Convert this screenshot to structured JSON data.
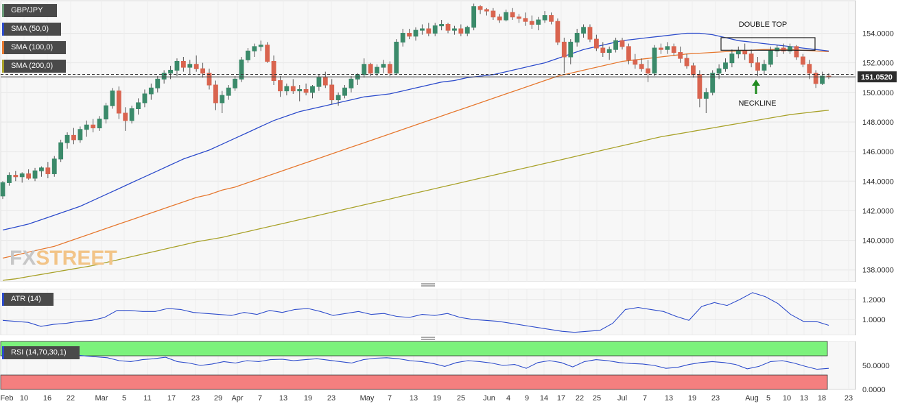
{
  "chart_data": [
    {
      "type": "candlestick",
      "title": "GBP/JPY",
      "x_ticks": [
        "Feb",
        "10",
        "16",
        "22",
        "Mar",
        "5",
        "11",
        "17",
        "23",
        "29",
        "Apr",
        "7",
        "13",
        "19",
        "23",
        "May",
        "7",
        "13",
        "19",
        "25",
        "Jun",
        "4",
        "9",
        "14",
        "17",
        "22",
        "25",
        "Jul",
        "7",
        "13",
        "19",
        "23",
        "Aug",
        "5",
        "10",
        "13",
        "18",
        "23"
      ],
      "y_ticks": [
        "138.0000",
        "140.0000",
        "142.0000",
        "144.0000",
        "146.0000",
        "148.0000",
        "150.0000",
        "152.0000",
        "154.0000"
      ],
      "ylim": [
        137.2,
        156.2
      ],
      "last_price": "151.0520",
      "last_price_value": 151.052,
      "dashed_level": 151.22,
      "candles": [
        [
          143.0,
          144.0,
          142.8,
          143.9
        ],
        [
          143.9,
          144.6,
          143.7,
          144.4
        ],
        [
          144.4,
          144.7,
          144.0,
          144.3
        ],
        [
          144.3,
          144.6,
          143.9,
          144.5
        ],
        [
          144.5,
          144.8,
          144.1,
          144.2
        ],
        [
          144.2,
          144.9,
          144.0,
          144.7
        ],
        [
          144.7,
          145.0,
          144.3,
          144.9
        ],
        [
          144.9,
          145.3,
          144.2,
          144.5
        ],
        [
          144.5,
          145.7,
          144.3,
          145.5
        ],
        [
          145.5,
          146.8,
          145.3,
          146.6
        ],
        [
          146.6,
          147.3,
          146.2,
          147.1
        ],
        [
          147.1,
          147.6,
          146.5,
          146.8
        ],
        [
          146.8,
          147.7,
          146.6,
          147.5
        ],
        [
          147.5,
          148.1,
          147.0,
          147.8
        ],
        [
          147.8,
          148.2,
          147.3,
          147.6
        ],
        [
          147.6,
          148.4,
          147.4,
          148.2
        ],
        [
          148.2,
          149.3,
          147.9,
          149.1
        ],
        [
          149.1,
          150.3,
          148.9,
          150.1
        ],
        [
          150.1,
          150.4,
          148.2,
          148.6
        ],
        [
          148.6,
          149.0,
          147.4,
          148.1
        ],
        [
          148.1,
          149.1,
          147.9,
          148.9
        ],
        [
          148.9,
          149.6,
          148.5,
          149.3
        ],
        [
          149.3,
          150.2,
          149.0,
          149.9
        ],
        [
          149.9,
          150.6,
          149.5,
          150.3
        ],
        [
          150.3,
          151.1,
          150.0,
          150.9
        ],
        [
          150.9,
          151.5,
          150.6,
          151.3
        ],
        [
          151.3,
          151.8,
          150.9,
          151.5
        ],
        [
          151.5,
          152.3,
          151.1,
          152.1
        ],
        [
          152.1,
          152.4,
          151.4,
          151.7
        ],
        [
          151.7,
          152.2,
          151.2,
          151.9
        ],
        [
          151.9,
          152.5,
          151.4,
          151.6
        ],
        [
          151.6,
          152.0,
          151.0,
          151.3
        ],
        [
          151.3,
          151.6,
          150.2,
          150.5
        ],
        [
          150.5,
          150.8,
          148.8,
          149.3
        ],
        [
          149.3,
          150.1,
          148.6,
          149.8
        ],
        [
          149.8,
          150.5,
          149.5,
          150.3
        ],
        [
          150.3,
          151.1,
          150.1,
          150.9
        ],
        [
          150.9,
          152.4,
          150.7,
          152.2
        ],
        [
          152.2,
          153.0,
          152.0,
          152.8
        ],
        [
          152.8,
          153.3,
          152.4,
          153.1
        ],
        [
          153.1,
          153.5,
          152.8,
          153.2
        ],
        [
          153.2,
          153.4,
          152.0,
          152.1
        ],
        [
          152.1,
          152.5,
          150.5,
          150.8
        ],
        [
          150.8,
          151.1,
          149.7,
          150.1
        ],
        [
          150.1,
          150.6,
          149.8,
          150.4
        ],
        [
          150.4,
          150.9,
          149.9,
          150.1
        ],
        [
          150.1,
          150.5,
          149.4,
          150.2
        ],
        [
          150.2,
          150.6,
          149.8,
          150.0
        ],
        [
          150.0,
          150.5,
          149.6,
          150.4
        ],
        [
          150.4,
          151.2,
          150.1,
          151.0
        ],
        [
          151.0,
          151.4,
          150.3,
          150.5
        ],
        [
          150.5,
          150.9,
          149.2,
          149.5
        ],
        [
          149.5,
          150.0,
          149.1,
          149.8
        ],
        [
          149.8,
          150.5,
          149.6,
          150.3
        ],
        [
          150.3,
          151.1,
          150.0,
          150.9
        ],
        [
          150.9,
          151.3,
          150.5,
          151.2
        ],
        [
          151.2,
          152.3,
          151.0,
          151.9
        ],
        [
          151.9,
          152.0,
          151.1,
          151.3
        ],
        [
          151.3,
          151.9,
          151.1,
          151.7
        ],
        [
          151.7,
          152.2,
          151.3,
          151.9
        ],
        [
          151.9,
          152.1,
          151.1,
          151.3
        ],
        [
          151.3,
          153.6,
          151.2,
          153.4
        ],
        [
          153.4,
          154.3,
          153.1,
          154.0
        ],
        [
          154.0,
          154.3,
          153.6,
          153.8
        ],
        [
          153.8,
          154.4,
          153.5,
          154.2
        ],
        [
          154.2,
          154.6,
          153.9,
          154.3
        ],
        [
          154.3,
          154.7,
          153.8,
          154.0
        ],
        [
          154.0,
          154.7,
          153.8,
          154.5
        ],
        [
          154.5,
          154.9,
          154.2,
          154.6
        ],
        [
          154.6,
          154.7,
          154.0,
          154.2
        ],
        [
          154.2,
          154.5,
          153.9,
          154.3
        ],
        [
          154.3,
          154.6,
          153.8,
          154.0
        ],
        [
          154.0,
          154.5,
          153.8,
          154.4
        ],
        [
          154.4,
          156.0,
          154.2,
          155.8
        ],
        [
          155.8,
          155.9,
          155.3,
          155.6
        ],
        [
          155.6,
          155.7,
          155.2,
          155.5
        ],
        [
          155.5,
          155.7,
          154.9,
          155.1
        ],
        [
          155.1,
          155.3,
          154.7,
          154.9
        ],
        [
          154.9,
          155.6,
          154.8,
          155.4
        ],
        [
          155.4,
          155.7,
          154.9,
          155.1
        ],
        [
          155.1,
          155.3,
          154.7,
          155.0
        ],
        [
          155.0,
          155.4,
          154.5,
          154.8
        ],
        [
          154.8,
          155.2,
          154.3,
          154.6
        ],
        [
          154.6,
          155.1,
          154.2,
          154.9
        ],
        [
          154.9,
          155.5,
          154.7,
          155.2
        ],
        [
          155.2,
          155.4,
          154.6,
          154.8
        ],
        [
          154.8,
          155.0,
          153.2,
          153.4
        ],
        [
          153.4,
          153.7,
          151.3,
          152.4
        ],
        [
          152.4,
          153.6,
          151.9,
          153.4
        ],
        [
          153.4,
          154.3,
          153.1,
          154.0
        ],
        [
          154.0,
          154.6,
          153.7,
          154.4
        ],
        [
          154.4,
          154.6,
          153.4,
          153.6
        ],
        [
          153.6,
          153.9,
          152.8,
          153.0
        ],
        [
          153.0,
          153.4,
          152.4,
          152.7
        ],
        [
          152.7,
          153.1,
          152.2,
          152.9
        ],
        [
          152.9,
          153.7,
          152.7,
          153.5
        ],
        [
          153.5,
          153.7,
          152.9,
          153.1
        ],
        [
          153.1,
          153.3,
          151.9,
          152.2
        ],
        [
          152.2,
          152.6,
          151.6,
          151.9
        ],
        [
          151.9,
          152.3,
          151.4,
          151.6
        ],
        [
          151.6,
          152.2,
          150.7,
          151.3
        ],
        [
          151.3,
          153.2,
          151.1,
          153.0
        ],
        [
          153.0,
          153.3,
          152.6,
          152.9
        ],
        [
          152.9,
          153.4,
          152.6,
          153.1
        ],
        [
          153.1,
          153.3,
          152.5,
          152.7
        ],
        [
          152.7,
          153.1,
          152.0,
          152.3
        ],
        [
          152.3,
          152.6,
          151.6,
          151.8
        ],
        [
          151.8,
          152.0,
          151.0,
          151.2
        ],
        [
          151.2,
          151.5,
          149.0,
          149.6
        ],
        [
          149.6,
          150.3,
          148.6,
          150.0
        ],
        [
          150.0,
          151.5,
          149.8,
          151.3
        ],
        [
          151.3,
          151.9,
          150.9,
          151.6
        ],
        [
          151.6,
          152.3,
          151.4,
          152.0
        ],
        [
          152.0,
          152.9,
          151.7,
          152.6
        ],
        [
          152.6,
          153.1,
          152.3,
          152.8
        ],
        [
          152.8,
          153.3,
          152.2,
          152.6
        ],
        [
          152.6,
          152.9,
          151.7,
          152.0
        ],
        [
          152.0,
          152.4,
          151.1,
          151.5
        ],
        [
          151.5,
          152.2,
          151.2,
          151.9
        ],
        [
          151.9,
          153.1,
          151.7,
          152.8
        ],
        [
          152.8,
          153.2,
          152.4,
          153.0
        ],
        [
          153.0,
          153.3,
          152.6,
          152.8
        ],
        [
          152.8,
          153.3,
          152.6,
          153.1
        ],
        [
          153.1,
          153.2,
          152.2,
          152.4
        ],
        [
          152.4,
          152.6,
          151.7,
          151.9
        ],
        [
          151.9,
          152.2,
          150.9,
          151.3
        ],
        [
          151.3,
          151.5,
          150.3,
          150.6
        ],
        [
          150.6,
          151.4,
          150.5,
          151.1
        ],
        [
          151.1,
          151.3,
          150.9,
          151.05
        ]
      ],
      "sma50": [
        140.7,
        140.9,
        141.1,
        141.4,
        141.7,
        142.0,
        142.3,
        142.7,
        143.1,
        143.5,
        143.9,
        144.3,
        144.7,
        145.1,
        145.5,
        145.8,
        146.1,
        146.5,
        146.9,
        147.3,
        147.7,
        148.1,
        148.4,
        148.7,
        148.9,
        149.1,
        149.3,
        149.5,
        149.7,
        149.8,
        149.9,
        150.1,
        150.3,
        150.5,
        150.7,
        150.8,
        151.0,
        151.1,
        151.2,
        151.4,
        151.6,
        151.8,
        152.0,
        152.3,
        152.6,
        152.9,
        153.1,
        153.3,
        153.5,
        153.6,
        153.7,
        153.8,
        153.9,
        154.0,
        154.0,
        153.9,
        153.7,
        153.5,
        153.4,
        153.3,
        153.2,
        153.1,
        153.0,
        152.9,
        152.8
      ],
      "sma100": [
        138.8,
        139.0,
        139.2,
        139.4,
        139.6,
        139.9,
        140.2,
        140.5,
        140.8,
        141.1,
        141.4,
        141.7,
        142.0,
        142.3,
        142.6,
        142.9,
        143.1,
        143.4,
        143.6,
        143.9,
        144.2,
        144.5,
        144.8,
        145.1,
        145.4,
        145.7,
        146.0,
        146.3,
        146.6,
        146.9,
        147.2,
        147.5,
        147.8,
        148.1,
        148.4,
        148.7,
        149.0,
        149.3,
        149.6,
        149.9,
        150.2,
        150.5,
        150.8,
        151.1,
        151.3,
        151.5,
        151.7,
        151.9,
        152.1,
        152.2,
        152.3,
        152.4,
        152.5,
        152.6,
        152.65,
        152.7,
        152.75,
        152.8,
        152.85,
        152.9,
        152.9,
        152.9,
        152.85,
        152.8,
        152.75
      ],
      "sma200": [
        137.3,
        137.4,
        137.55,
        137.7,
        137.85,
        138.0,
        138.15,
        138.3,
        138.5,
        138.7,
        138.9,
        139.1,
        139.3,
        139.5,
        139.7,
        139.9,
        140.05,
        140.2,
        140.4,
        140.6,
        140.8,
        141.0,
        141.2,
        141.4,
        141.6,
        141.8,
        142.0,
        142.2,
        142.4,
        142.6,
        142.8,
        143.0,
        143.2,
        143.4,
        143.6,
        143.8,
        144.0,
        144.2,
        144.4,
        144.6,
        144.8,
        145.0,
        145.2,
        145.4,
        145.6,
        145.8,
        146.0,
        146.2,
        146.4,
        146.6,
        146.8,
        147.0,
        147.15,
        147.3,
        147.45,
        147.6,
        147.75,
        147.9,
        148.05,
        148.2,
        148.35,
        148.5,
        148.6,
        148.7,
        148.8
      ],
      "legend": [
        {
          "name": "GBP/JPY",
          "color": "#6a9a78"
        },
        {
          "name": "SMA (50,0)",
          "color": "#2b4acb"
        },
        {
          "name": "SMA (100,0)",
          "color": "#e6772e"
        },
        {
          "name": "SMA (200,0)",
          "color": "#a8a128"
        }
      ],
      "annotations": {
        "double_top": "DOUBLE TOP",
        "neckline": "NECKLINE"
      }
    },
    {
      "type": "line",
      "title": "ATR (14)",
      "y_ticks": [
        "1.0000",
        "1.2000"
      ],
      "ylim": [
        0.84,
        1.31
      ],
      "values": [
        0.99,
        0.98,
        0.97,
        0.93,
        0.95,
        0.96,
        0.98,
        0.99,
        1.02,
        1.09,
        1.09,
        1.08,
        1.08,
        1.11,
        1.1,
        1.07,
        1.06,
        1.05,
        1.04,
        1.07,
        1.05,
        1.09,
        1.07,
        1.1,
        1.11,
        1.08,
        1.04,
        1.06,
        1.08,
        1.05,
        1.06,
        1.03,
        1.02,
        1.05,
        1.04,
        1.06,
        1.02,
        1.0,
        0.99,
        0.98,
        0.96,
        0.94,
        0.92,
        0.9,
        0.88,
        0.87,
        0.88,
        0.89,
        0.96,
        1.1,
        1.12,
        1.1,
        1.08,
        1.03,
        0.99,
        1.13,
        1.17,
        1.14,
        1.2,
        1.27,
        1.23,
        1.16,
        1.05,
        0.98,
        0.98,
        0.94
      ]
    },
    {
      "type": "line",
      "title": "RSI (14,70,30,1)",
      "y_ticks": [
        "0.0000",
        "50.0000"
      ],
      "ylim": [
        0,
        100
      ],
      "upper_band": 70,
      "lower_band": 30,
      "values": [
        64,
        66,
        70,
        72,
        68,
        70,
        72,
        70,
        68,
        66,
        60,
        58,
        62,
        64,
        67,
        58,
        55,
        50,
        53,
        58,
        55,
        60,
        58,
        62,
        63,
        60,
        62,
        64,
        61,
        58,
        55,
        62,
        65,
        66,
        64,
        60,
        58,
        54,
        48,
        56,
        60,
        58,
        55,
        50,
        52,
        44,
        56,
        60,
        56,
        47,
        58,
        62,
        60,
        56,
        54,
        53,
        50,
        44,
        46,
        52,
        56,
        58,
        56,
        52,
        43,
        48,
        58,
        60,
        55,
        48,
        42,
        44
      ]
    }
  ]
}
